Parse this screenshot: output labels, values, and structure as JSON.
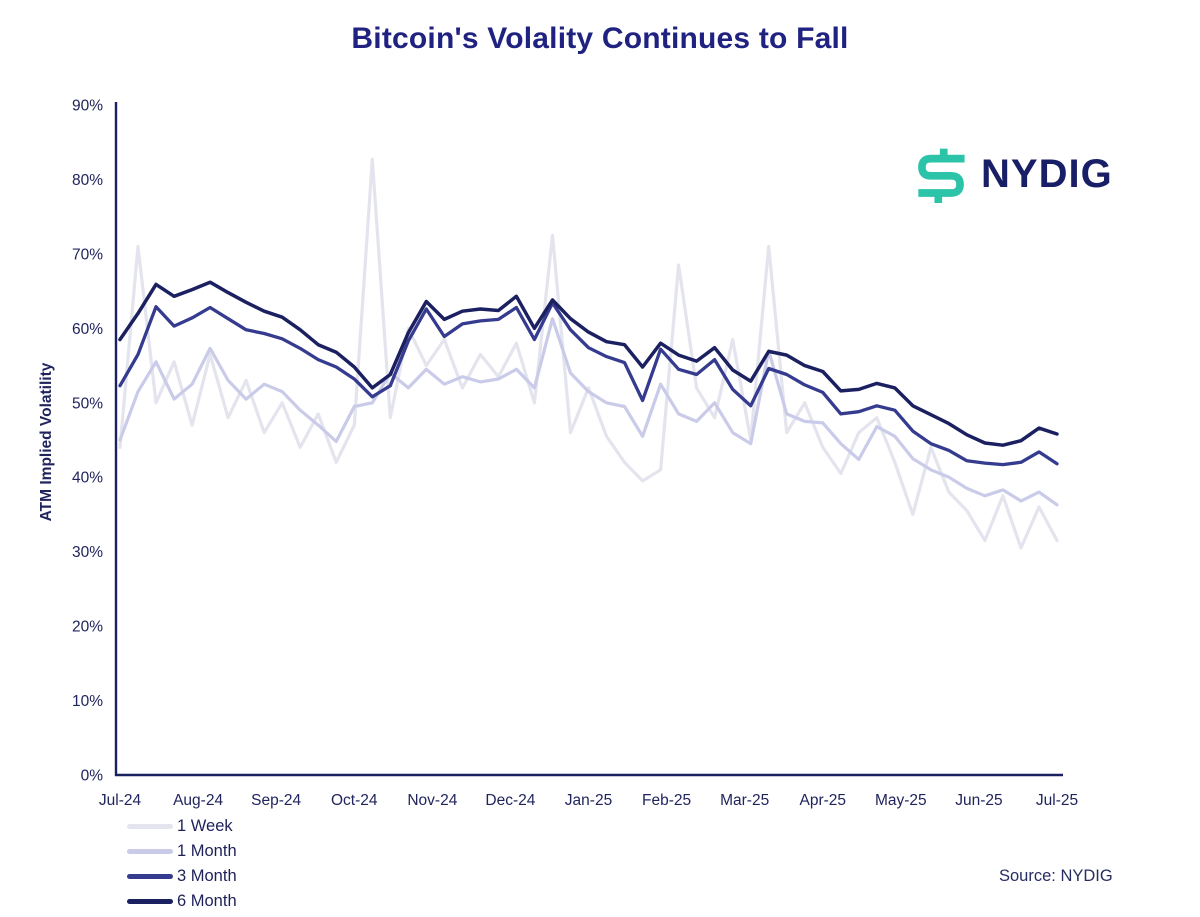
{
  "branding": {
    "logo_text": "NYDIG",
    "icon": "nydig-dollar-icon",
    "icon_color": "#2bc4a8",
    "text_color": "#191f66"
  },
  "source_note": "Source: NYDIG",
  "text_color": "#20245c",
  "axis_color": "#1b2060",
  "chart_data": {
    "type": "line",
    "title": "Bitcoin's Volality Continues to Fall",
    "xlabel": "",
    "ylabel": "ATM Implied Volatility",
    "ylim": [
      0,
      90
    ],
    "grid": false,
    "legend_position": "bottom-left",
    "x_unit": "weekly samples, Jul-2024 through Jul-2025",
    "y_tick_labels": [
      "0%",
      "10%",
      "20%",
      "30%",
      "40%",
      "50%",
      "60%",
      "70%",
      "80%",
      "90%"
    ],
    "x_tick_labels": [
      "Jul-24",
      "Aug-24",
      "Sep-24",
      "Oct-24",
      "Nov-24",
      "Dec-24",
      "Jan-25",
      "Feb-25",
      "Mar-25",
      "Apr-25",
      "May-25",
      "Jun-25",
      "Jul-25"
    ],
    "series": [
      {
        "name": "1 Week",
        "color": "#e4e4ee",
        "width": 3.2,
        "values": [
          44,
          71,
          50,
          55.5,
          47,
          56.5,
          48,
          53,
          46,
          50,
          44,
          48.5,
          42,
          47,
          82.7,
          48,
          60,
          55,
          58.5,
          52,
          56.5,
          53.5,
          58,
          50,
          72.5,
          46,
          52,
          45.5,
          42,
          39.5,
          41,
          68.5,
          52,
          48,
          58.5,
          45,
          71,
          46,
          50,
          44,
          40.5,
          46,
          48,
          42,
          35,
          44,
          38,
          35.5,
          31.5,
          37.5,
          30.5,
          36,
          31.5
        ]
      },
      {
        "name": "1 Month",
        "color": "#c9cbe9",
        "width": 3.2,
        "values": [
          45,
          51.5,
          55.5,
          50.5,
          52.5,
          57.3,
          53,
          50.5,
          52.5,
          51.5,
          49,
          47,
          44.8,
          49.5,
          50,
          54,
          52,
          54.5,
          52.5,
          53.5,
          52.8,
          53.2,
          54.5,
          52,
          61.3,
          54,
          51.5,
          50,
          49.5,
          45.5,
          52.5,
          48.5,
          47.5,
          50,
          46,
          44.5,
          57,
          48.5,
          47.5,
          47.3,
          44.5,
          42.4,
          46.8,
          45.5,
          42.5,
          41,
          40,
          38.5,
          37.5,
          38.3,
          36.8,
          38,
          36.3
        ]
      },
      {
        "name": "3 Month",
        "color": "#353b8e",
        "width": 3.3,
        "values": [
          52.3,
          56.5,
          62.9,
          60.3,
          61.4,
          62.8,
          61.3,
          59.8,
          59.3,
          58.6,
          57.3,
          55.8,
          54.8,
          53.2,
          50.8,
          52.3,
          58.3,
          62.6,
          58.9,
          60.6,
          61,
          61.2,
          62.8,
          58.5,
          63.4,
          59.8,
          57.4,
          56.2,
          55.4,
          50.3,
          57.2,
          54.5,
          53.8,
          55.8,
          51.8,
          49.6,
          54.6,
          53.8,
          52.4,
          51.4,
          48.5,
          48.8,
          49.6,
          49,
          46.2,
          44.5,
          43.6,
          42.2,
          41.9,
          41.7,
          42,
          43.4,
          41.8
        ]
      },
      {
        "name": "6 Month",
        "color": "#1b2060",
        "width": 3.5,
        "values": [
          58.5,
          62,
          65.9,
          64.3,
          65.2,
          66.2,
          64.8,
          63.5,
          62.3,
          61.5,
          59.8,
          57.8,
          56.8,
          54.8,
          52,
          53.8,
          59.4,
          63.6,
          61.2,
          62.3,
          62.6,
          62.4,
          64.3,
          60,
          63.8,
          61.3,
          59.5,
          58.2,
          57.8,
          54.8,
          58,
          56.4,
          55.6,
          57.4,
          54.4,
          52.9,
          56.9,
          56.4,
          55,
          54.2,
          51.6,
          51.8,
          52.6,
          52,
          49.6,
          48.4,
          47.2,
          45.7,
          44.6,
          44.3,
          44.9,
          46.6,
          45.8
        ]
      }
    ]
  }
}
